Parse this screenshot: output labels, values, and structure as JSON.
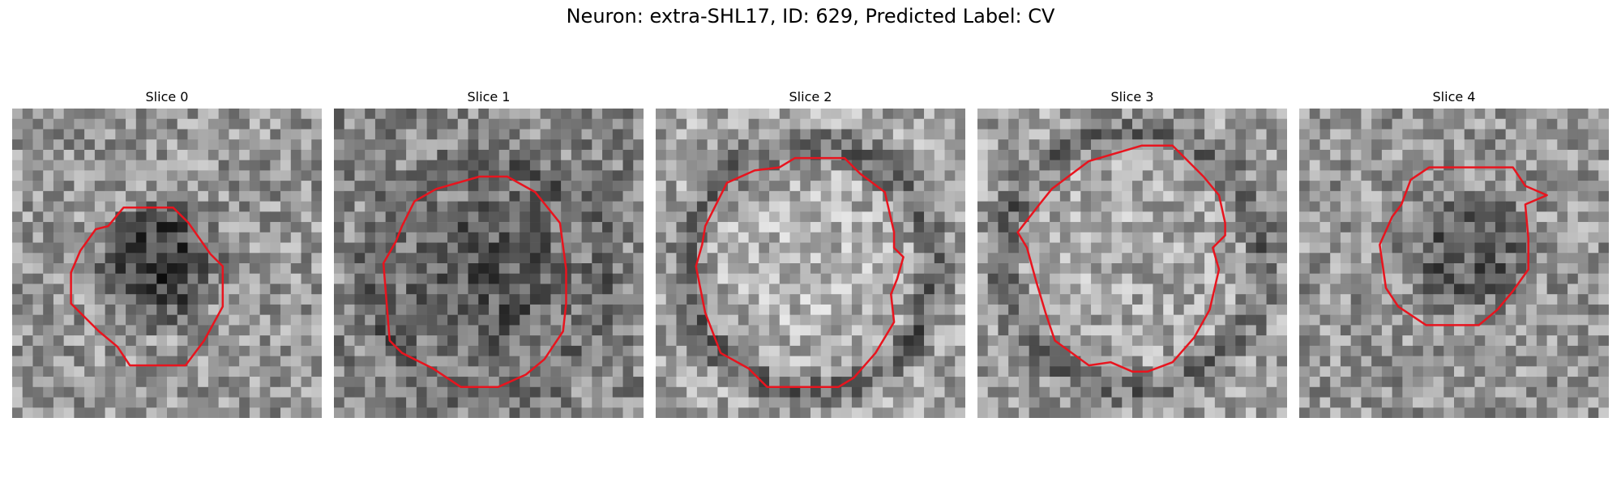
{
  "figure": {
    "title": "Neuron: extra-SHL17, ID: 629, Predicted Label: CV",
    "contour_color": "#e8141e"
  },
  "panels": [
    {
      "title": "Slice 0",
      "base_gray": 150,
      "blob_dark": 85,
      "ring_dark": 0,
      "contour_shape": "small-irregular-octagon-left"
    },
    {
      "title": "Slice 1",
      "base_gray": 135,
      "blob_dark": 45,
      "ring_dark": 35,
      "contour_shape": "large-dodecagon"
    },
    {
      "title": "Slice 2",
      "base_gray": 165,
      "blob_dark": -15,
      "ring_dark": 70,
      "contour_shape": "large-dodecagon"
    },
    {
      "title": "Slice 3",
      "base_gray": 160,
      "blob_dark": -10,
      "ring_dark": 55,
      "contour_shape": "large-polygon-with-notch"
    },
    {
      "title": "Slice 4",
      "base_gray": 150,
      "blob_dark": 55,
      "ring_dark": 0,
      "contour_shape": "medium-polygon-with-tab"
    }
  ]
}
